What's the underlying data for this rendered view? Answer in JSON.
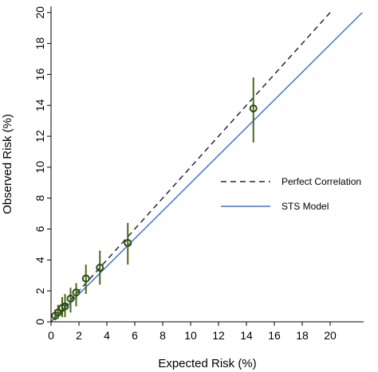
{
  "colors": {
    "axis": "#000000",
    "perfect_line": "#1d2b3a",
    "model_line": "#4472d4",
    "marker": "#2e4a10",
    "errorbar": "#4a6a1a"
  },
  "chart_data": {
    "type": "scatter",
    "title": "",
    "xlabel": "Expected Risk (%)",
    "ylabel": "Observed Risk (%)",
    "xlim": [
      0,
      22.4
    ],
    "ylim": [
      0,
      20.4
    ],
    "xticks": [
      0,
      2,
      4,
      6,
      8,
      10,
      12,
      14,
      16,
      18,
      20
    ],
    "yticks": [
      0,
      2,
      4,
      6,
      8,
      10,
      12,
      14,
      16,
      18,
      20
    ],
    "grid": false,
    "legend_placement": "right",
    "legend": [
      {
        "label": "Perfect Correlation",
        "style": "dashed"
      },
      {
        "label": "STS Model",
        "style": "solid"
      }
    ],
    "points": [
      {
        "x": 0.3,
        "y": 0.4,
        "lo": 0.1,
        "hi": 0.8
      },
      {
        "x": 0.5,
        "y": 0.6,
        "lo": 0.2,
        "hi": 1.1
      },
      {
        "x": 0.8,
        "y": 0.9,
        "lo": 0.3,
        "hi": 1.6
      },
      {
        "x": 1.0,
        "y": 1.0,
        "lo": 0.3,
        "hi": 1.8
      },
      {
        "x": 1.4,
        "y": 1.5,
        "lo": 0.6,
        "hi": 2.2
      },
      {
        "x": 1.8,
        "y": 1.9,
        "lo": 1.0,
        "hi": 2.5
      },
      {
        "x": 2.5,
        "y": 2.8,
        "lo": 1.8,
        "hi": 3.7
      },
      {
        "x": 3.5,
        "y": 3.5,
        "lo": 2.4,
        "hi": 4.6
      },
      {
        "x": 5.5,
        "y": 5.1,
        "lo": 3.7,
        "hi": 6.4
      },
      {
        "x": 14.5,
        "y": 13.8,
        "lo": 11.6,
        "hi": 15.8
      }
    ],
    "perfect_line": {
      "x": [
        0,
        20
      ],
      "y": [
        0,
        20
      ]
    },
    "model_line": {
      "x": [
        0,
        22.3
      ],
      "y": [
        0,
        20
      ]
    }
  }
}
